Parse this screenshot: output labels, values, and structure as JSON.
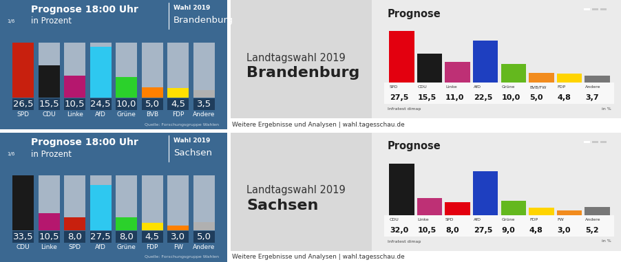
{
  "chart_data": [
    {
      "type": "bar",
      "title": "Prognose 18:00 Uhr",
      "subtitle": "in Prozent",
      "annotations": [
        "Wahl 2019",
        "Brandenburg",
        "Quelle: Forschungsgruppe Wahlen",
        "1/6"
      ],
      "categories": [
        "SPD",
        "CDU",
        "Linke",
        "AfD",
        "Grüne",
        "BVB",
        "FDP",
        "Andere"
      ],
      "values": [
        26.5,
        15.5,
        10.5,
        24.5,
        10.0,
        5.0,
        4.5,
        3.5
      ],
      "value_labels": [
        "26,5",
        "15,5",
        "10,5",
        "24,5",
        "10,0",
        "5,0",
        "4,5",
        "3,5"
      ],
      "colors": [
        "#c8200e",
        "#1a1a1a",
        "#b5176e",
        "#2ec8f0",
        "#2bd12b",
        "#ff8000",
        "#ffe000",
        "#b0b0b0"
      ],
      "ylim": [
        0,
        26.5
      ],
      "tick_labels": false,
      "data_labels": true
    },
    {
      "type": "bar",
      "title": "Prognose",
      "annotations": [
        "Landtagswahl 2019",
        "Brandenburg",
        "Infratest dimap",
        "in %",
        "Weitere Ergebnisse und Analysen | wahl.tagesschau.de"
      ],
      "categories": [
        "SPD",
        "CDU",
        "Linke",
        "AfD",
        "Grüne",
        "BVB/FW",
        "FDP",
        "Andere"
      ],
      "values": [
        27.5,
        15.5,
        11.0,
        22.5,
        10.0,
        5.0,
        4.8,
        3.7
      ],
      "value_labels": [
        "27,5",
        "15,5",
        "11,0",
        "22,5",
        "10,0",
        "5,0",
        "4,8",
        "3,7"
      ],
      "colors": [
        "#e3000f",
        "#1a1a1a",
        "#be3075",
        "#1e3fc0",
        "#64b81e",
        "#f28c1e",
        "#ffd400",
        "#777777"
      ],
      "ylim": [
        0,
        27.5
      ],
      "tick_labels": false,
      "data_labels": true
    },
    {
      "type": "bar",
      "title": "Prognose 18:00 Uhr",
      "subtitle": "in Prozent",
      "annotations": [
        "Wahl 2019",
        "Sachsen",
        "Quelle: Forschungsgruppe Wahlen",
        "1/6"
      ],
      "categories": [
        "CDU",
        "Linke",
        "SPD",
        "AfD",
        "Grüne",
        "FDP",
        "FW",
        "Andere"
      ],
      "values": [
        33.5,
        10.5,
        8.0,
        27.5,
        8.0,
        4.5,
        3.0,
        5.0
      ],
      "value_labels": [
        "33,5",
        "10,5",
        "8,0",
        "27,5",
        "8,0",
        "4,5",
        "3,0",
        "5,0"
      ],
      "colors": [
        "#1a1a1a",
        "#b5176e",
        "#c8200e",
        "#2ec8f0",
        "#2bd12b",
        "#ffe000",
        "#ff8000",
        "#b0b0b0"
      ],
      "ylim": [
        0,
        33.5
      ],
      "tick_labels": false,
      "data_labels": true
    },
    {
      "type": "bar",
      "title": "Prognose",
      "annotations": [
        "Landtagswahl 2019",
        "Sachsen",
        "Infratest dimap",
        "in %",
        "Weitere Ergebnisse und Analysen | wahl.tagesschau.de"
      ],
      "categories": [
        "CDU",
        "Linke",
        "SPD",
        "AfD",
        "Grüne",
        "FDP",
        "FW",
        "Andere"
      ],
      "values": [
        32.0,
        10.5,
        8.0,
        27.5,
        9.0,
        4.8,
        3.0,
        5.2
      ],
      "value_labels": [
        "32,0",
        "10,5",
        "8,0",
        "27,5",
        "9,0",
        "4,8",
        "3,0",
        "5,2"
      ],
      "colors": [
        "#1a1a1a",
        "#be3075",
        "#e3000f",
        "#1e3fc0",
        "#64b81e",
        "#ffd400",
        "#f28c1e",
        "#777777"
      ],
      "ylim": [
        0,
        32.0
      ],
      "tick_labels": false,
      "data_labels": true
    }
  ]
}
